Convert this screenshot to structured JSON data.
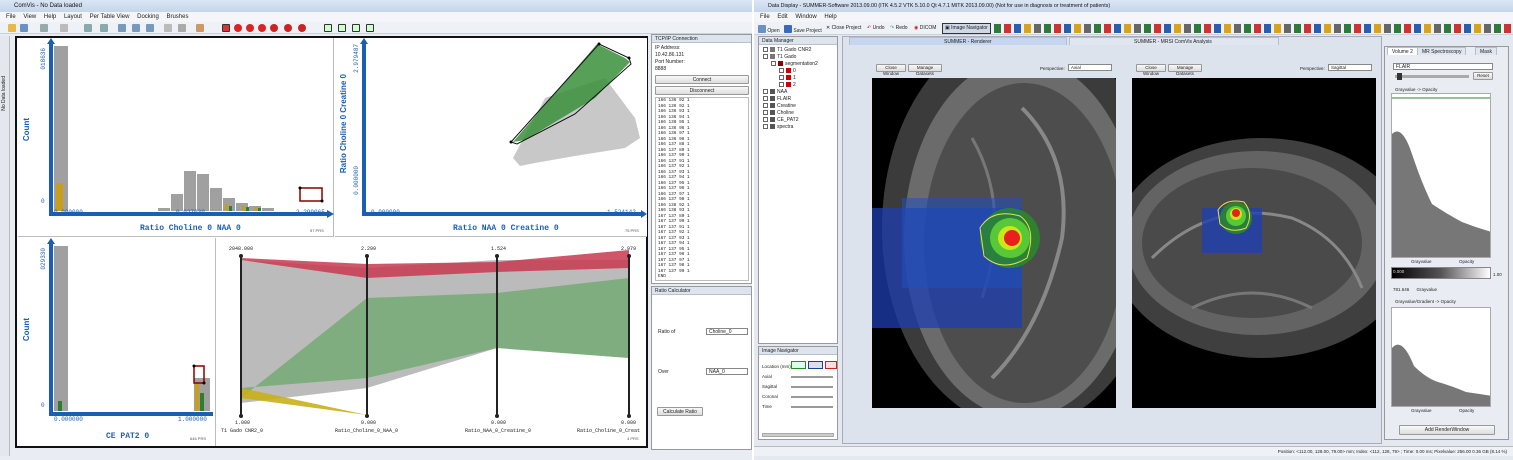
{
  "left_window": {
    "title": "ComVis - No Data loaded",
    "menu": [
      "File",
      "View",
      "Help",
      "Layout",
      "Per Table View",
      "Docking",
      "Brushes"
    ],
    "side_tab": "No Data loaded",
    "views": [
      {
        "id": "hist1",
        "y_label": "Count",
        "y_max": "018636",
        "y_min": "0",
        "x_min": "0.000000",
        "x_mid": "0.927039",
        "x_max": "2.299065",
        "x_label": "Ratio Choline 0 NAA 0",
        "count": "57 PRS"
      },
      {
        "id": "scatter",
        "y_label": "Ratio Choline 0 Creatine 0",
        "y_max": "2.979487",
        "y_min": "0.000000",
        "x_min": "0.000000",
        "x_max": "1.524142",
        "x_label": "Ratio NAA 0 Creatine 0",
        "count": "75 PRS"
      },
      {
        "id": "hist2",
        "y_label": "Count",
        "y_max": "029330",
        "y_min": "0",
        "x_min": "0.000000",
        "x_max": "1.000000",
        "x_label": "CE PAT2 0",
        "count": "646 PRS"
      },
      {
        "id": "parallel",
        "axes_top": [
          "2048.000",
          "2.299",
          "1.524",
          "2.979"
        ],
        "axes_bottom": [
          "1.000",
          "0.000",
          "0.000",
          "0.000"
        ],
        "axes_labels": [
          "T1 Gado CNR2_0",
          "Ratio_Choline_0_NAA_0",
          "Ratio_NAA_0_Creatine_0",
          "Ratio_Choline_0_Creat"
        ],
        "count": "4 PRS"
      }
    ],
    "tcp": {
      "title": "TCP/IP Connection",
      "ip_label": "IP Address:",
      "ip": "10.42.86.131",
      "port_label": "Port Number:",
      "port": "8888",
      "connect": "Connect",
      "disconnect": "Disconnect",
      "log": [
        "166 136 92 1",
        "166 136 92 1",
        "166 136 93 1",
        "166 136 94 1",
        "166 136 95 1",
        "166 136 96 1",
        "166 136 97 1",
        "166 136 98 1",
        "166 137 88 1",
        "166 137 89 1",
        "166 137 90 1",
        "166 137 91 1",
        "166 137 92 1",
        "166 137 93 1",
        "166 137 94 1",
        "166 137 95 1",
        "166 137 96 1",
        "166 137 97 1",
        "166 137 98 1",
        "166 138 92 1",
        "166 138 93 1",
        "167 137 89 1",
        "167 137 90 1",
        "167 137 91 1",
        "167 137 92 1",
        "167 137 93 1",
        "167 137 94 1",
        "167 137 95 1",
        "167 137 96 1",
        "167 137 97 1",
        "167 137 98 1",
        "167 137 99 1",
        "END"
      ]
    },
    "ratio": {
      "title": "Ratio Calculator",
      "ratio_of": "Ratio of",
      "ratio_of_val": "Choline_0",
      "over": "Over",
      "over_val": "NAA_0",
      "calculate": "Calculate Ratio"
    }
  },
  "right_window": {
    "title": "Data Display - SUMMER-Software 2013.09.00 (ITK 4.5.2  VTK 5.10.0 Qt 4.7.1 MITK 2013.09.00) (Not for use in diagnosis or treatment of patients)",
    "menu": [
      "File",
      "Edit",
      "Window",
      "Help"
    ],
    "toolbar": [
      "Open",
      "Save Project",
      "Close Project",
      "Undo",
      "Redo",
      "DICOM",
      "Image Navigator"
    ],
    "data_manager": {
      "title": "Data Manager",
      "items": [
        {
          "label": "T1 Gado CNR2",
          "color": "#777"
        },
        {
          "label": "T1 Gado",
          "color": "#777"
        },
        {
          "label": "segmentation2",
          "color": "#8b0000"
        },
        {
          "label": "0",
          "color": "#c00"
        },
        {
          "label": "1",
          "color": "#c00"
        },
        {
          "label": "2",
          "color": "#c00"
        },
        {
          "label": "NAA",
          "color": "#555"
        },
        {
          "label": "FLAIR",
          "color": "#555"
        },
        {
          "label": "Creatine",
          "color": "#555"
        },
        {
          "label": "Choline",
          "color": "#555"
        },
        {
          "label": "CE_PAT2",
          "color": "#555"
        },
        {
          "label": "spectra",
          "color": "#555"
        }
      ]
    },
    "image_navigator": {
      "title": "Image Navigator",
      "rows": [
        "Location (mm)",
        "Axial",
        "Sagittal",
        "Coronal",
        "Time"
      ]
    },
    "tabs": [
      "SUMMER - Renderer",
      "SUMMER - MRSI ComVis Analysis"
    ],
    "render_left": {
      "close": "Close Window",
      "manage": "Manage Datasets",
      "perspective_label": "Perspective:",
      "perspective": "Axial"
    },
    "render_right": {
      "close": "Close Window",
      "manage": "Manage Datasets",
      "perspective_label": "Perspective:",
      "perspective": "Sagittal"
    },
    "volume": {
      "tabs": [
        "Volume 2",
        "MR Spectroscopy",
        "Mask"
      ],
      "select": "FLAIR",
      "reset": "Reset",
      "title1": "Grayvalue -> Opacity",
      "x1": "Grayvalue",
      "y1": "Opacity",
      "cmin": "0.000",
      "cmax": "1.00",
      "val": "781.646",
      "val_label": "Grayvalue",
      "title2": "Grayvalue/Gradient -> Opacity",
      "x2": "Grayvalue",
      "y2": "Opacity",
      "add": "Add RenderWindow"
    },
    "status": "Position: <112.00, 128.00, 79.00> mm; Index: <112, 128, 79> ; Time: 0.00 ms; Pixelvalue: 256.00    0.36 GB (8.14 %)"
  }
}
